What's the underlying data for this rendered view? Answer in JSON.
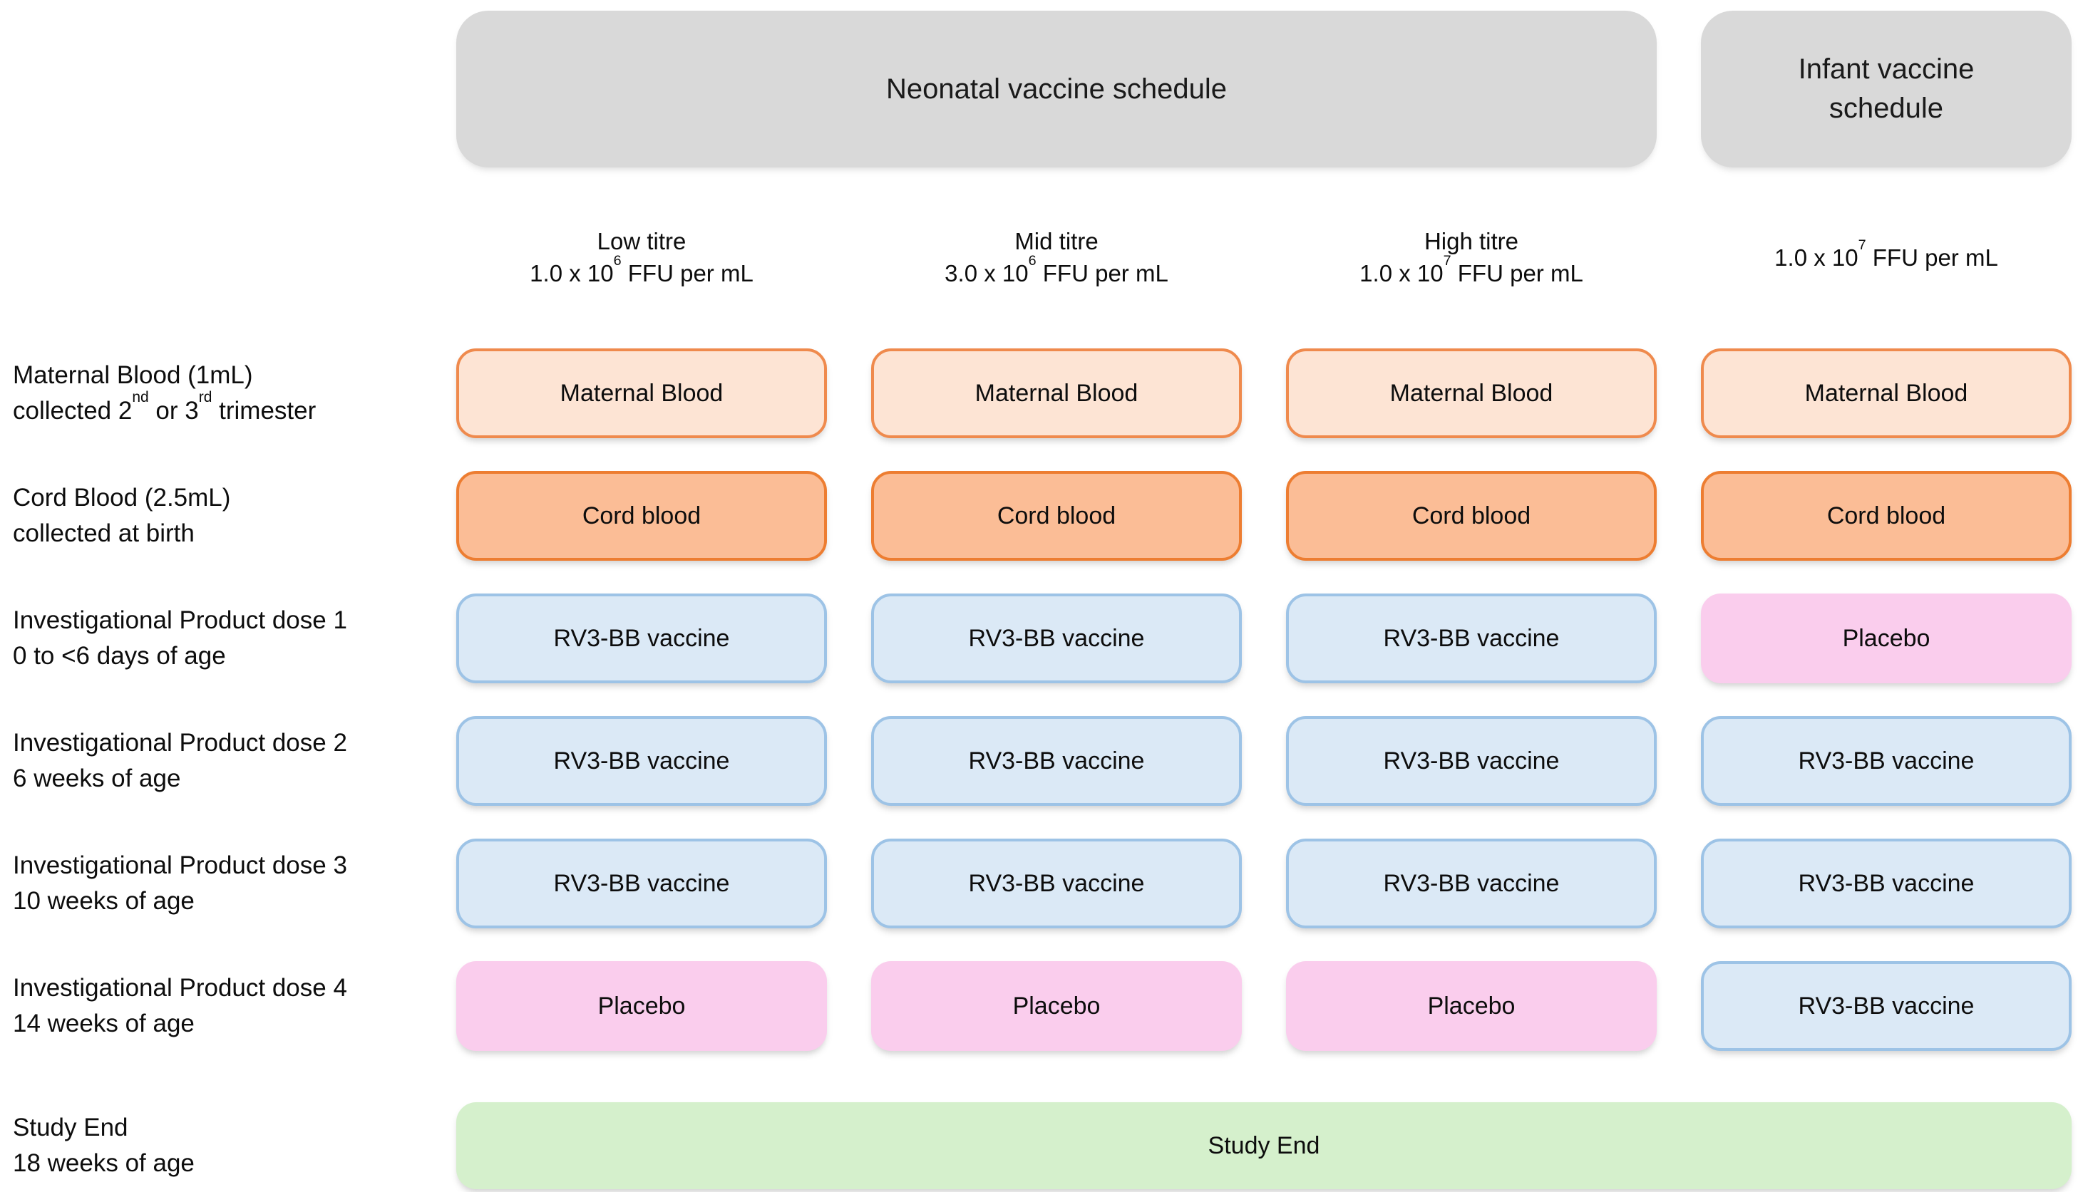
{
  "palette": {
    "header_gray": "#D9D9D9",
    "maternal_fill": "#FDE4D4",
    "maternal_border": "#EF8A4D",
    "cord_fill": "#FBBD96",
    "cord_border": "#ED7D31",
    "vaccine_fill": "#DBE9F6",
    "vaccine_border": "#9DC3E6",
    "placebo_fill": "#FACDED",
    "study_end_fill": "#D5F0CC",
    "background": "#FFFFFF",
    "text": "#0D0D0D"
  },
  "headers": {
    "neonatal": "Neonatal vaccine schedule",
    "infant_line1": "Infant vaccine",
    "infant_line2": "schedule"
  },
  "columns": [
    {
      "title": "Low titre",
      "dose_base": "1.0 x 10",
      "dose_exp": "6",
      "dose_unit": " FFU per mL"
    },
    {
      "title": "Mid titre",
      "dose_base": "3.0 x 10",
      "dose_exp": "6",
      "dose_unit": " FFU per mL"
    },
    {
      "title": "High titre",
      "dose_base": "1.0 x 10",
      "dose_exp": "7",
      "dose_unit": " FFU per mL"
    },
    {
      "title": "",
      "dose_base": "1.0 x 10",
      "dose_exp": "7",
      "dose_unit": " FFU per mL"
    }
  ],
  "rows": [
    {
      "label": {
        "line1": "Maternal Blood (1mL)",
        "line2_pre": "collected 2",
        "line2_sup1": "nd",
        "line2_mid": " or 3",
        "line2_sup2": "rd",
        "line2_post": " trimester"
      },
      "cells": [
        {
          "text": "Maternal Blood",
          "variant": "maternal"
        },
        {
          "text": "Maternal Blood",
          "variant": "maternal"
        },
        {
          "text": "Maternal Blood",
          "variant": "maternal"
        },
        {
          "text": "Maternal Blood",
          "variant": "maternal"
        }
      ]
    },
    {
      "label": {
        "line1": "Cord Blood (2.5mL)",
        "line2": "collected at birth"
      },
      "cells": [
        {
          "text": "Cord blood",
          "variant": "cord"
        },
        {
          "text": "Cord blood",
          "variant": "cord"
        },
        {
          "text": "Cord blood",
          "variant": "cord"
        },
        {
          "text": "Cord blood",
          "variant": "cord"
        }
      ]
    },
    {
      "label": {
        "line1": "Investigational Product dose 1",
        "line2": "0 to <6 days of age"
      },
      "cells": [
        {
          "text": "RV3-BB vaccine",
          "variant": "vaccine"
        },
        {
          "text": "RV3-BB vaccine",
          "variant": "vaccine"
        },
        {
          "text": "RV3-BB vaccine",
          "variant": "vaccine"
        },
        {
          "text": "Placebo",
          "variant": "placebo"
        }
      ]
    },
    {
      "label": {
        "line1": "Investigational Product dose 2",
        "line2": "6 weeks of age"
      },
      "cells": [
        {
          "text": "RV3-BB vaccine",
          "variant": "vaccine"
        },
        {
          "text": "RV3-BB vaccine",
          "variant": "vaccine"
        },
        {
          "text": "RV3-BB vaccine",
          "variant": "vaccine"
        },
        {
          "text": "RV3-BB vaccine",
          "variant": "vaccine"
        }
      ]
    },
    {
      "label": {
        "line1": "Investigational Product dose 3",
        "line2": "10 weeks of age"
      },
      "cells": [
        {
          "text": "RV3-BB vaccine",
          "variant": "vaccine"
        },
        {
          "text": "RV3-BB vaccine",
          "variant": "vaccine"
        },
        {
          "text": "RV3-BB vaccine",
          "variant": "vaccine"
        },
        {
          "text": "RV3-BB vaccine",
          "variant": "vaccine"
        }
      ]
    },
    {
      "label": {
        "line1": "Investigational Product dose 4",
        "line2": "14 weeks of age"
      },
      "cells": [
        {
          "text": "Placebo",
          "variant": "placebo"
        },
        {
          "text": "Placebo",
          "variant": "placebo"
        },
        {
          "text": "Placebo",
          "variant": "placebo"
        },
        {
          "text": "RV3-BB vaccine",
          "variant": "vaccine"
        }
      ]
    }
  ],
  "study_end": {
    "label": {
      "line1": "Study End",
      "line2": "18 weeks of age"
    },
    "cell": {
      "text": "Study End",
      "variant": "study-end"
    }
  }
}
